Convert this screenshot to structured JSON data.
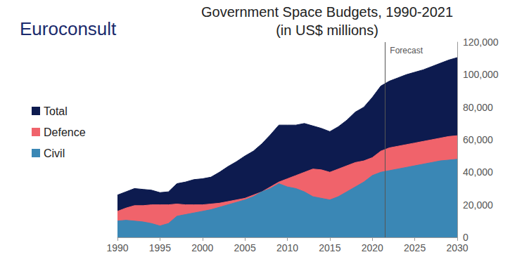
{
  "chart_data": {
    "type": "area",
    "title": "Government Space Budgets, 1990-2021",
    "subtitle": "(in US$ millions)",
    "source": "Euroconsult",
    "forecast": {
      "label": "Forecast",
      "x": 2021.5
    },
    "x": [
      1990,
      1991,
      1992,
      1993,
      1994,
      1995,
      1996,
      1997,
      1998,
      1999,
      2000,
      2001,
      2002,
      2003,
      2004,
      2005,
      2006,
      2007,
      2008,
      2009,
      2010,
      2011,
      2012,
      2013,
      2014,
      2015,
      2016,
      2017,
      2018,
      2019,
      2020,
      2021,
      2022,
      2023,
      2024,
      2025,
      2026,
      2027,
      2028,
      2029,
      2030
    ],
    "series": [
      {
        "name": "Total",
        "color": "#0d1b4f",
        "values": [
          26000,
          28000,
          30000,
          29500,
          29000,
          27500,
          28000,
          33000,
          34000,
          35500,
          36000,
          37000,
          40000,
          43500,
          46500,
          50000,
          53000,
          57500,
          63000,
          69000,
          69000,
          69000,
          70000,
          68500,
          67000,
          65000,
          68000,
          72000,
          77000,
          80000,
          86000,
          93000,
          96000,
          98000,
          100000,
          101500,
          103000,
          105000,
          107000,
          109000,
          110500
        ]
      },
      {
        "name": "Defence",
        "color": "#f0636b",
        "values": [
          16000,
          18000,
          19500,
          19500,
          20000,
          20000,
          20000,
          20500,
          20000,
          20000,
          20000,
          20500,
          21000,
          22000,
          23000,
          24000,
          26000,
          28000,
          31000,
          34000,
          36000,
          38000,
          40000,
          42000,
          41500,
          40000,
          42000,
          44000,
          46000,
          47000,
          49000,
          53000,
          55000,
          56000,
          57000,
          58000,
          59000,
          60000,
          61000,
          62000,
          62500
        ]
      },
      {
        "name": "Civil",
        "color": "#3a87b5",
        "values": [
          10000,
          10500,
          10000,
          9500,
          8500,
          7000,
          8500,
          13000,
          14000,
          15000,
          16000,
          17000,
          18500,
          20000,
          21500,
          23000,
          25000,
          28000,
          30000,
          33000,
          31000,
          30000,
          28000,
          25000,
          24000,
          23000,
          25000,
          28000,
          31000,
          34000,
          38000,
          40000,
          41000,
          42000,
          43000,
          44000,
          45000,
          46000,
          47000,
          47500,
          48000
        ]
      }
    ],
    "xlim": [
      1990,
      2030
    ],
    "xticks": [
      1990,
      1995,
      2000,
      2005,
      2010,
      2015,
      2020,
      2025,
      2030
    ],
    "ylim": [
      0,
      120000
    ],
    "yticks": [
      0,
      {
        "value": 20000,
        "label": "20,000"
      },
      {
        "value": 40000,
        "label": "40,000"
      },
      {
        "value": 60000,
        "label": "60,000"
      },
      {
        "value": 80000,
        "label": "80,000"
      },
      {
        "value": 100000,
        "label": "100,000"
      },
      {
        "value": 120000,
        "label": "120,000"
      }
    ],
    "stacked": false,
    "grid": false,
    "legend": "left"
  }
}
